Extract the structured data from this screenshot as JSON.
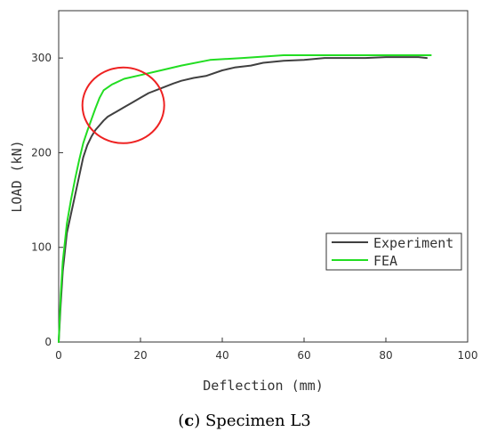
{
  "chart_data": {
    "type": "line",
    "xlabel": "Deflection (mm)",
    "ylabel": "LOAD (kN)",
    "xlim": [
      0,
      100
    ],
    "ylim": [
      0,
      350
    ],
    "xticks": [
      0,
      20,
      40,
      60,
      80,
      100
    ],
    "yticks": [
      0,
      100,
      200,
      300
    ],
    "grid": false,
    "legend_position": "bottom-right",
    "series": [
      {
        "name": "Experiment",
        "color": "#404040",
        "x": [
          0,
          0.5,
          1,
          2,
          3,
          4,
          5,
          6,
          7,
          8,
          9,
          10,
          11,
          12,
          14,
          16,
          18,
          20,
          22,
          25,
          28,
          30,
          33,
          36,
          40,
          43,
          47,
          50,
          55,
          60,
          65,
          70,
          75,
          80,
          85,
          88,
          90
        ],
        "y": [
          0,
          40,
          75,
          115,
          135,
          155,
          175,
          195,
          208,
          217,
          224,
          229,
          234,
          238,
          243,
          248,
          253,
          258,
          263,
          268,
          273,
          276,
          279,
          281,
          287,
          290,
          292,
          295,
          297,
          298,
          300,
          300,
          300,
          301,
          301,
          301,
          300
        ]
      },
      {
        "name": "FEA",
        "color": "#22dd22",
        "x": [
          0,
          0.5,
          1,
          2,
          3,
          4,
          5,
          6,
          7,
          8,
          9,
          10,
          11,
          13,
          16,
          20,
          25,
          30,
          37,
          45,
          55,
          60,
          70,
          80,
          88,
          91
        ],
        "y": [
          0,
          50,
          85,
          125,
          150,
          172,
          192,
          210,
          223,
          235,
          247,
          258,
          266,
          272,
          278,
          282,
          287,
          292,
          298,
          300,
          303,
          303,
          303,
          303,
          303,
          303
        ]
      }
    ],
    "annotations": [
      {
        "type": "circle",
        "color": "#ee2222",
        "cx": 15.8,
        "cy": 250,
        "rx": 10,
        "ry": 40
      }
    ]
  },
  "caption": {
    "open": "(",
    "letter": "c",
    "rest": ") Specimen L3"
  }
}
